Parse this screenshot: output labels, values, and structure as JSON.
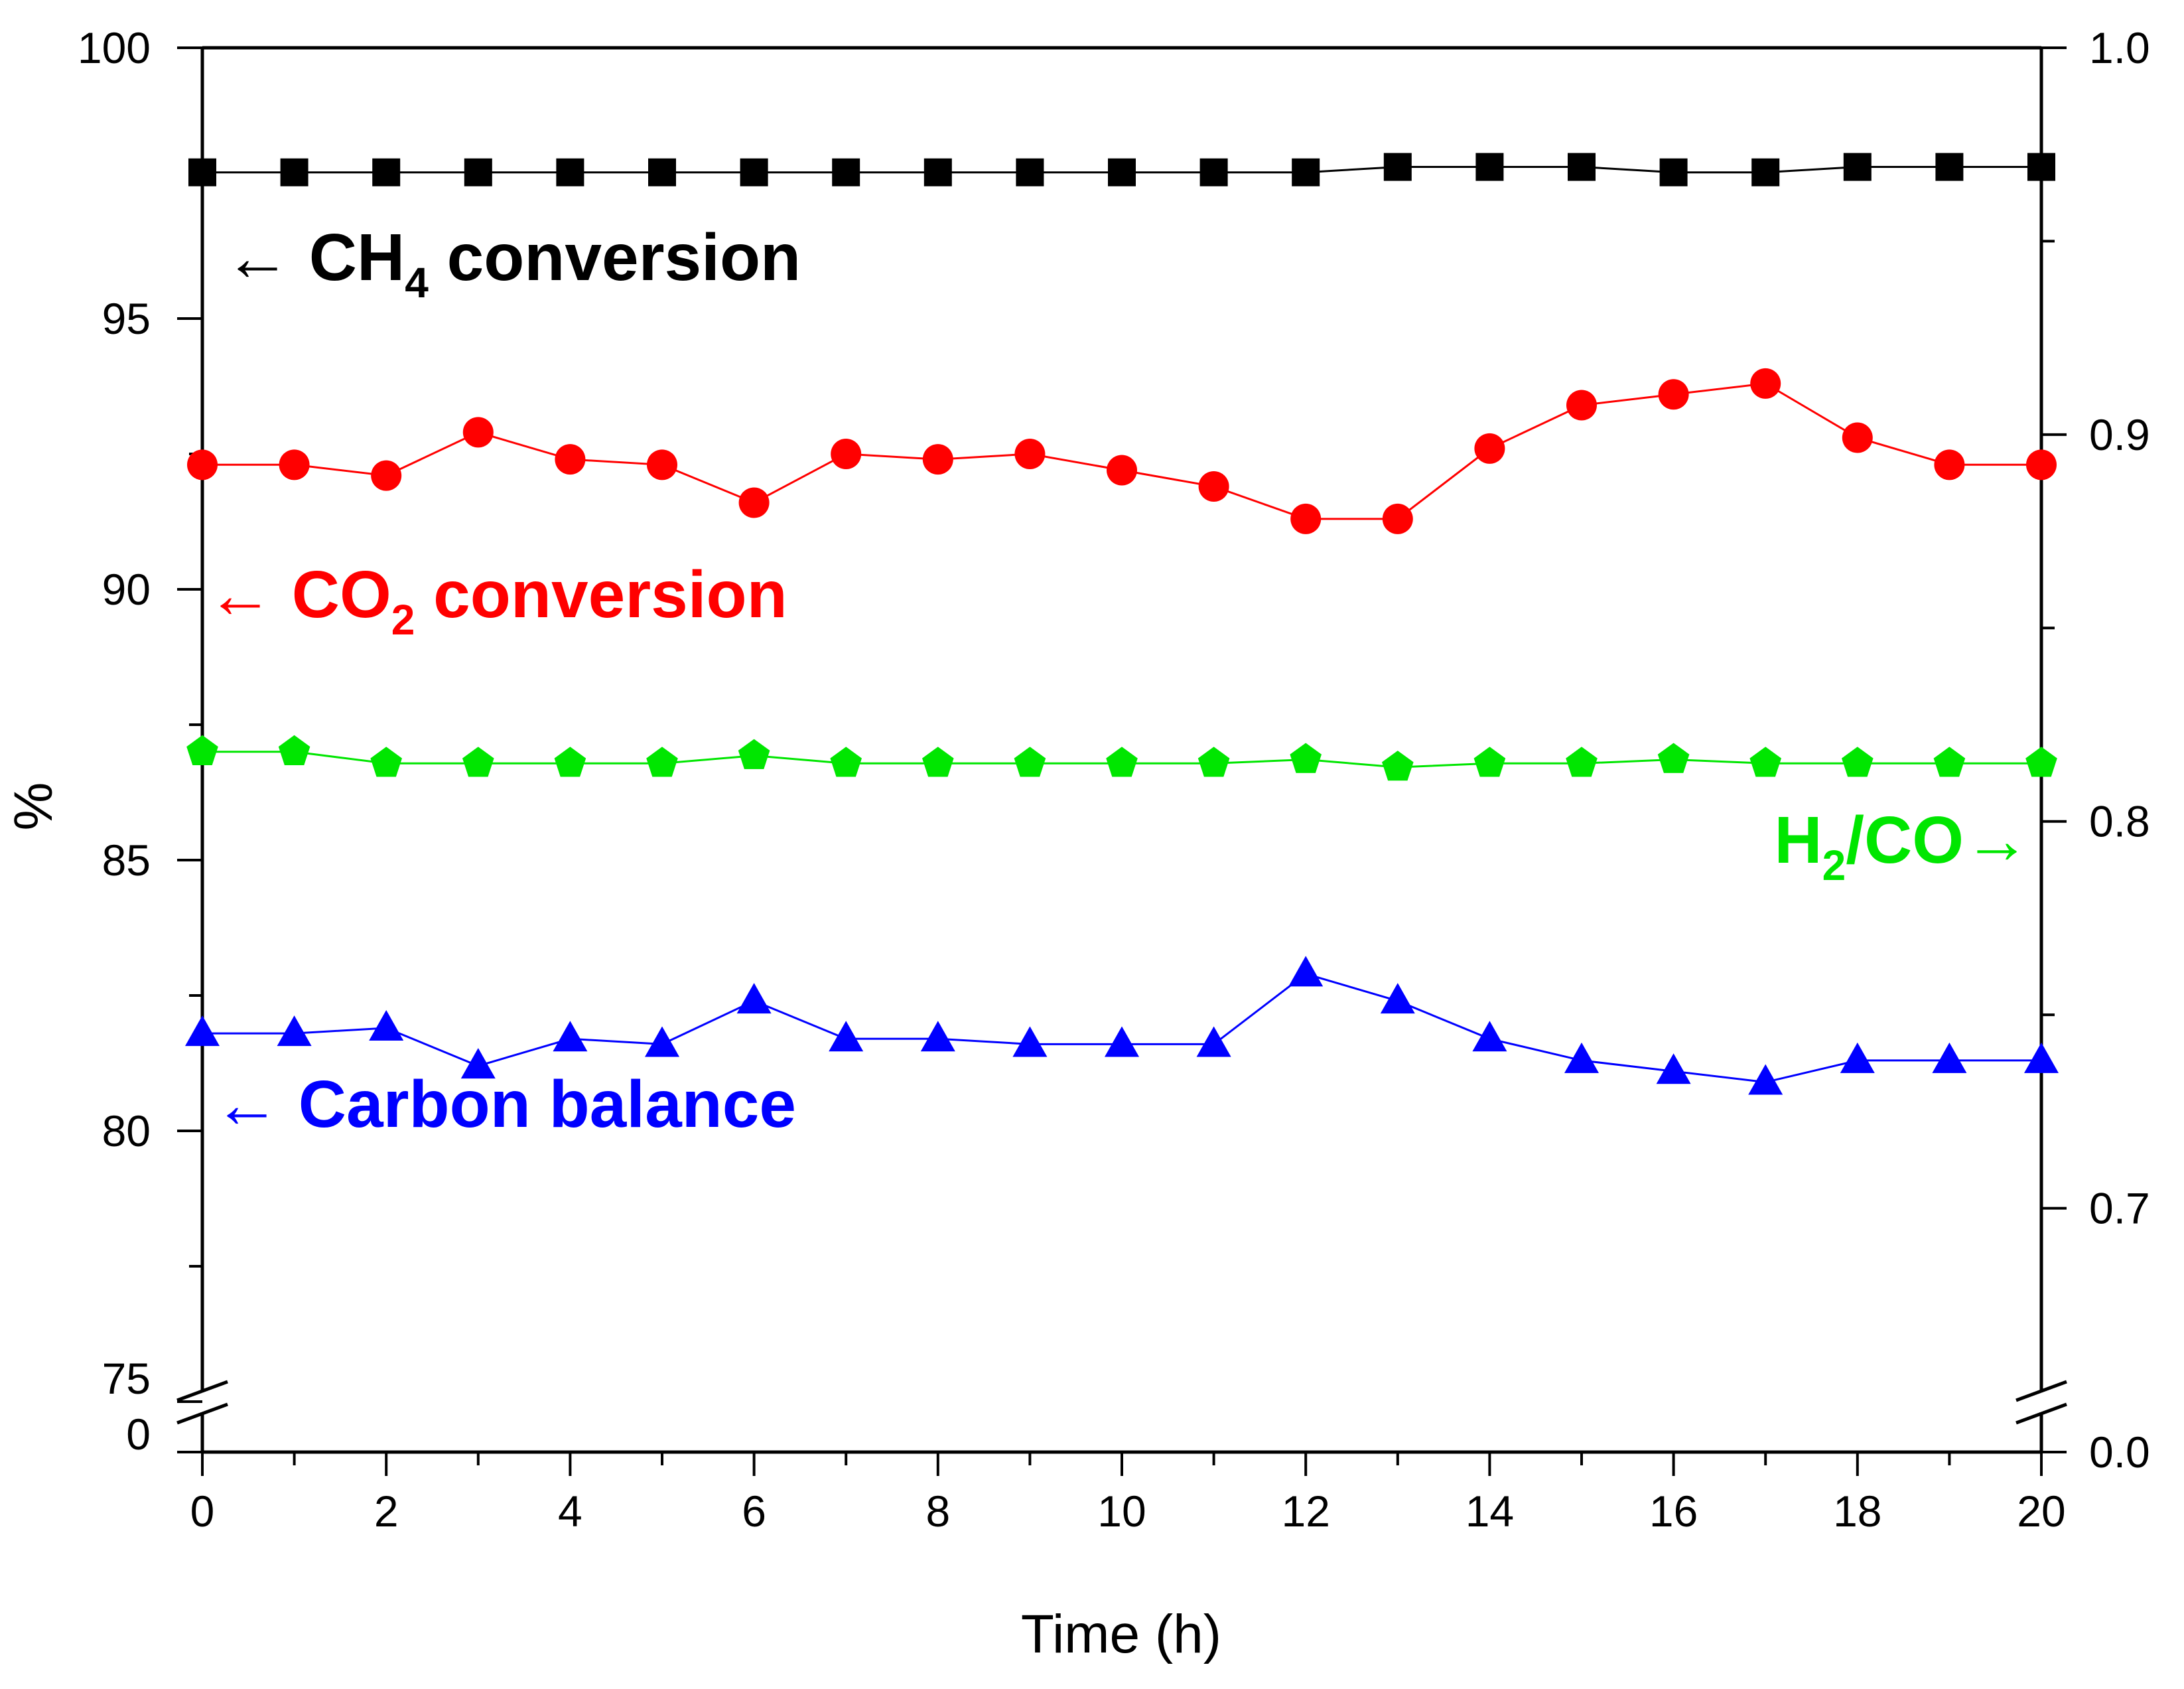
{
  "chart_data": {
    "type": "line",
    "title": "",
    "xlabel": "Time (h)",
    "ylabel": "%",
    "xlim": [
      0,
      20
    ],
    "x_ticks": [
      0,
      2,
      4,
      6,
      8,
      10,
      12,
      14,
      16,
      18,
      20
    ],
    "x_tick_labels": [
      "0",
      "2",
      "4",
      "6",
      "8",
      "10",
      "12",
      "14",
      "16",
      "18",
      "20"
    ],
    "y_left": {
      "break": true,
      "segments": [
        [
          0,
          0
        ],
        [
          75,
          100
        ]
      ],
      "ticks": [
        0,
        75,
        80,
        85,
        90,
        95,
        100
      ],
      "tick_labels": [
        "0",
        "75",
        "80",
        "85",
        "90",
        "95",
        "100"
      ]
    },
    "y_right": {
      "break": true,
      "segments": [
        [
          0,
          0
        ],
        [
          0.65,
          1.0
        ]
      ],
      "ticks": [
        0.0,
        0.7,
        0.8,
        0.9,
        1.0
      ],
      "tick_labels": [
        "0.0",
        "0.7",
        "0.8",
        "0.9",
        "1.0"
      ]
    },
    "x": [
      0,
      1,
      2,
      3,
      4,
      5,
      6,
      7,
      8,
      9,
      10,
      11,
      12,
      13,
      14,
      15,
      16,
      17,
      18,
      19,
      20
    ],
    "series": [
      {
        "name": "CH4 conversion",
        "axis": "left",
        "color": "#000000",
        "marker": "square",
        "values": [
          97.7,
          97.7,
          97.7,
          97.7,
          97.7,
          97.7,
          97.7,
          97.7,
          97.7,
          97.7,
          97.7,
          97.7,
          97.7,
          97.8,
          97.8,
          97.8,
          97.7,
          97.7,
          97.8,
          97.8,
          97.8
        ]
      },
      {
        "name": "CO2 conversion",
        "axis": "left",
        "color": "#ff0000",
        "marker": "circle",
        "values": [
          92.3,
          92.3,
          92.1,
          92.9,
          92.4,
          92.3,
          91.6,
          92.5,
          92.4,
          92.5,
          92.2,
          91.9,
          91.3,
          91.3,
          92.6,
          93.4,
          93.6,
          93.8,
          92.8,
          92.3,
          92.3
        ]
      },
      {
        "name": "H2/CO",
        "axis": "right",
        "color": "#00e600",
        "marker": "pentagon",
        "values": [
          0.818,
          0.818,
          0.815,
          0.815,
          0.815,
          0.815,
          0.817,
          0.815,
          0.815,
          0.815,
          0.815,
          0.815,
          0.816,
          0.814,
          0.815,
          0.815,
          0.816,
          0.815,
          0.815,
          0.815,
          0.815
        ]
      },
      {
        "name": "Carbon balance",
        "axis": "left",
        "color": "#0000ff",
        "marker": "triangle",
        "values": [
          81.8,
          81.8,
          81.9,
          81.2,
          81.7,
          81.6,
          82.4,
          81.7,
          81.7,
          81.6,
          81.6,
          81.6,
          82.9,
          82.4,
          81.7,
          81.3,
          81.1,
          80.9,
          81.3,
          81.3,
          81.3
        ]
      }
    ],
    "annotations": [
      {
        "series": "CH4 conversion",
        "arrow": "←",
        "pre": "CH",
        "sub": "4",
        "post": " conversion",
        "color": "#000000"
      },
      {
        "series": "CO2 conversion",
        "arrow": "←",
        "pre": "CO",
        "sub": "2",
        "post": " conversion",
        "color": "#ff0000"
      },
      {
        "series": "H2/CO",
        "arrow": "→",
        "pre": "H",
        "sub": "2",
        "post": "/CO",
        "color": "#00e600"
      },
      {
        "series": "Carbon balance",
        "arrow": "←",
        "pre": "",
        "sub": "",
        "post": "Carbon balance",
        "color": "#0000ff"
      }
    ]
  }
}
